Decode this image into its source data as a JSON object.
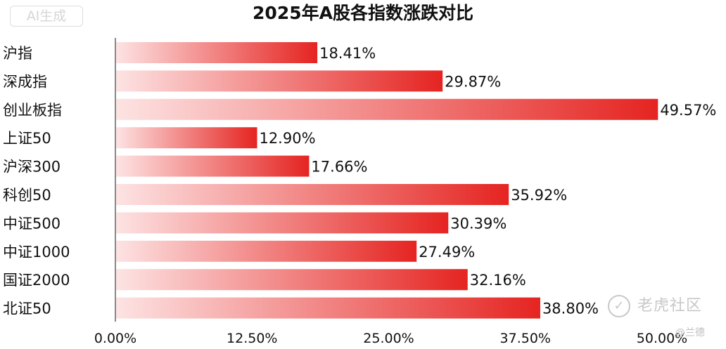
{
  "badge": {
    "text": "AI生成"
  },
  "watermark": {
    "logo_glyph": "✓",
    "text": "老虎社区",
    "user": "@兰德"
  },
  "colors": {
    "bar_light": "#fde3e3",
    "bar_dark": "#e52421",
    "axis": "#888888",
    "text": "#111111"
  },
  "chart_data": {
    "type": "bar",
    "orientation": "horizontal",
    "title": "2025年A股各指数涨跌对比",
    "categories": [
      "沪指",
      "深成指",
      "创业板指",
      "上证50",
      "沪深300",
      "科创50",
      "中证500",
      "中证1000",
      "国证2000",
      "北证50"
    ],
    "values": [
      18.41,
      29.87,
      49.57,
      12.9,
      17.66,
      35.92,
      30.39,
      27.49,
      32.16,
      38.8
    ],
    "value_labels": [
      "18.41%",
      "29.87%",
      "49.57%",
      "12.90%",
      "17.66%",
      "35.92%",
      "30.39%",
      "27.49%",
      "32.16%",
      "38.80%"
    ],
    "x_ticks": [
      0,
      12.5,
      25,
      37.5,
      50
    ],
    "x_tick_labels": [
      "0.00%",
      "12.50%",
      "25.00%",
      "37.50%",
      "50.00%"
    ],
    "xlim": [
      0,
      50
    ],
    "grid": false,
    "legend": "none"
  }
}
